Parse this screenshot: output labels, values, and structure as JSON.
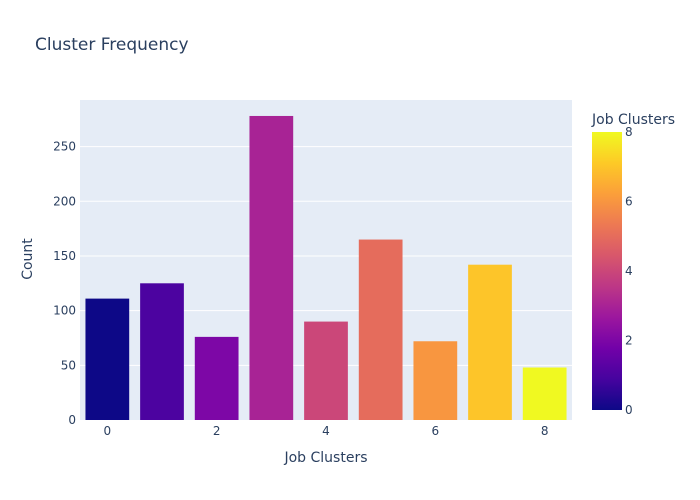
{
  "chart_data": {
    "type": "bar",
    "title": "Cluster Frequency",
    "xlabel": "Job Clusters",
    "ylabel": "Count",
    "x": [
      0,
      1,
      2,
      3,
      4,
      5,
      6,
      7,
      8
    ],
    "values": [
      111,
      125,
      76,
      278,
      90,
      165,
      72,
      142,
      48
    ],
    "xlim": [
      -0.5,
      8.5
    ],
    "ylim": [
      0,
      292.6
    ],
    "x_ticks": [
      0,
      2,
      4,
      6,
      8
    ],
    "y_ticks": [
      0,
      50,
      100,
      150,
      200,
      250
    ],
    "grid": true,
    "plot_background": "#e5ecf6",
    "colorbar": {
      "title": "Job Clusters",
      "range": [
        0,
        8
      ],
      "ticks": [
        0,
        2,
        4,
        6,
        8
      ],
      "colorscale": [
        "#0d0887",
        "#46039f",
        "#7201a8",
        "#9c179e",
        "#bd3786",
        "#d8576b",
        "#ed7953",
        "#fb9f3a",
        "#fdca26",
        "#f0f921"
      ]
    }
  }
}
